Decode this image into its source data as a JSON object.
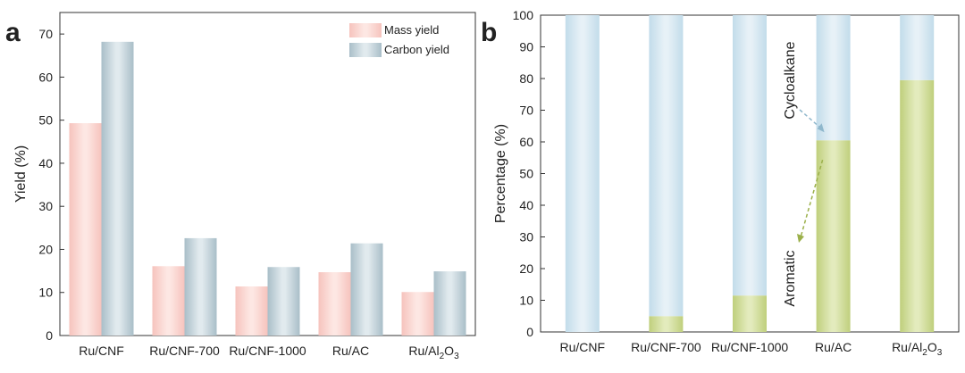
{
  "colors": {
    "mass": "#f6c3bd",
    "mass_light": "#fde7e3",
    "carbon": "#a9bec8",
    "carbon_light": "#e1eaee",
    "cyclo": "#c2dcea",
    "cyclo_light": "#e7f1f7",
    "aromatic": "#bfcf7c",
    "aromatic_light": "#e3ebbd",
    "axis": "#333333"
  },
  "chart_data": [
    {
      "type": "bar",
      "panel": "a",
      "ylabel": "Yield (%)",
      "xlabel": "",
      "ylim": [
        0,
        75
      ],
      "yticks": [
        0,
        10,
        20,
        30,
        40,
        50,
        60,
        70
      ],
      "categories": [
        "Ru/CNF",
        "Ru/CNF-700",
        "Ru/CNF-1000",
        "Ru/AC",
        "Ru/Al2O3"
      ],
      "series": [
        {
          "name": "Mass yield",
          "values": [
            49.3,
            16.1,
            11.4,
            14.7,
            10.1
          ]
        },
        {
          "name": "Carbon yield",
          "values": [
            68.2,
            22.6,
            15.9,
            21.4,
            14.9
          ]
        }
      ],
      "legend": "top-right"
    },
    {
      "type": "bar",
      "stacked": true,
      "panel": "b",
      "ylabel": "Percentage (%)",
      "xlabel": "",
      "ylim": [
        0,
        100
      ],
      "yticks": [
        0,
        10,
        20,
        30,
        40,
        50,
        60,
        70,
        80,
        90,
        100
      ],
      "categories": [
        "Ru/CNF",
        "Ru/CNF-700",
        "Ru/CNF-1000",
        "Ru/AC",
        "Ru/Al2O3"
      ],
      "series": [
        {
          "name": "Aromatic",
          "values": [
            0,
            5,
            11.5,
            60.5,
            79.5
          ]
        },
        {
          "name": "Cycloalkane",
          "values": [
            100,
            95,
            88.5,
            39.5,
            20.5
          ]
        }
      ],
      "annotations": [
        "Cycloalkane",
        "Aromatic"
      ]
    }
  ]
}
